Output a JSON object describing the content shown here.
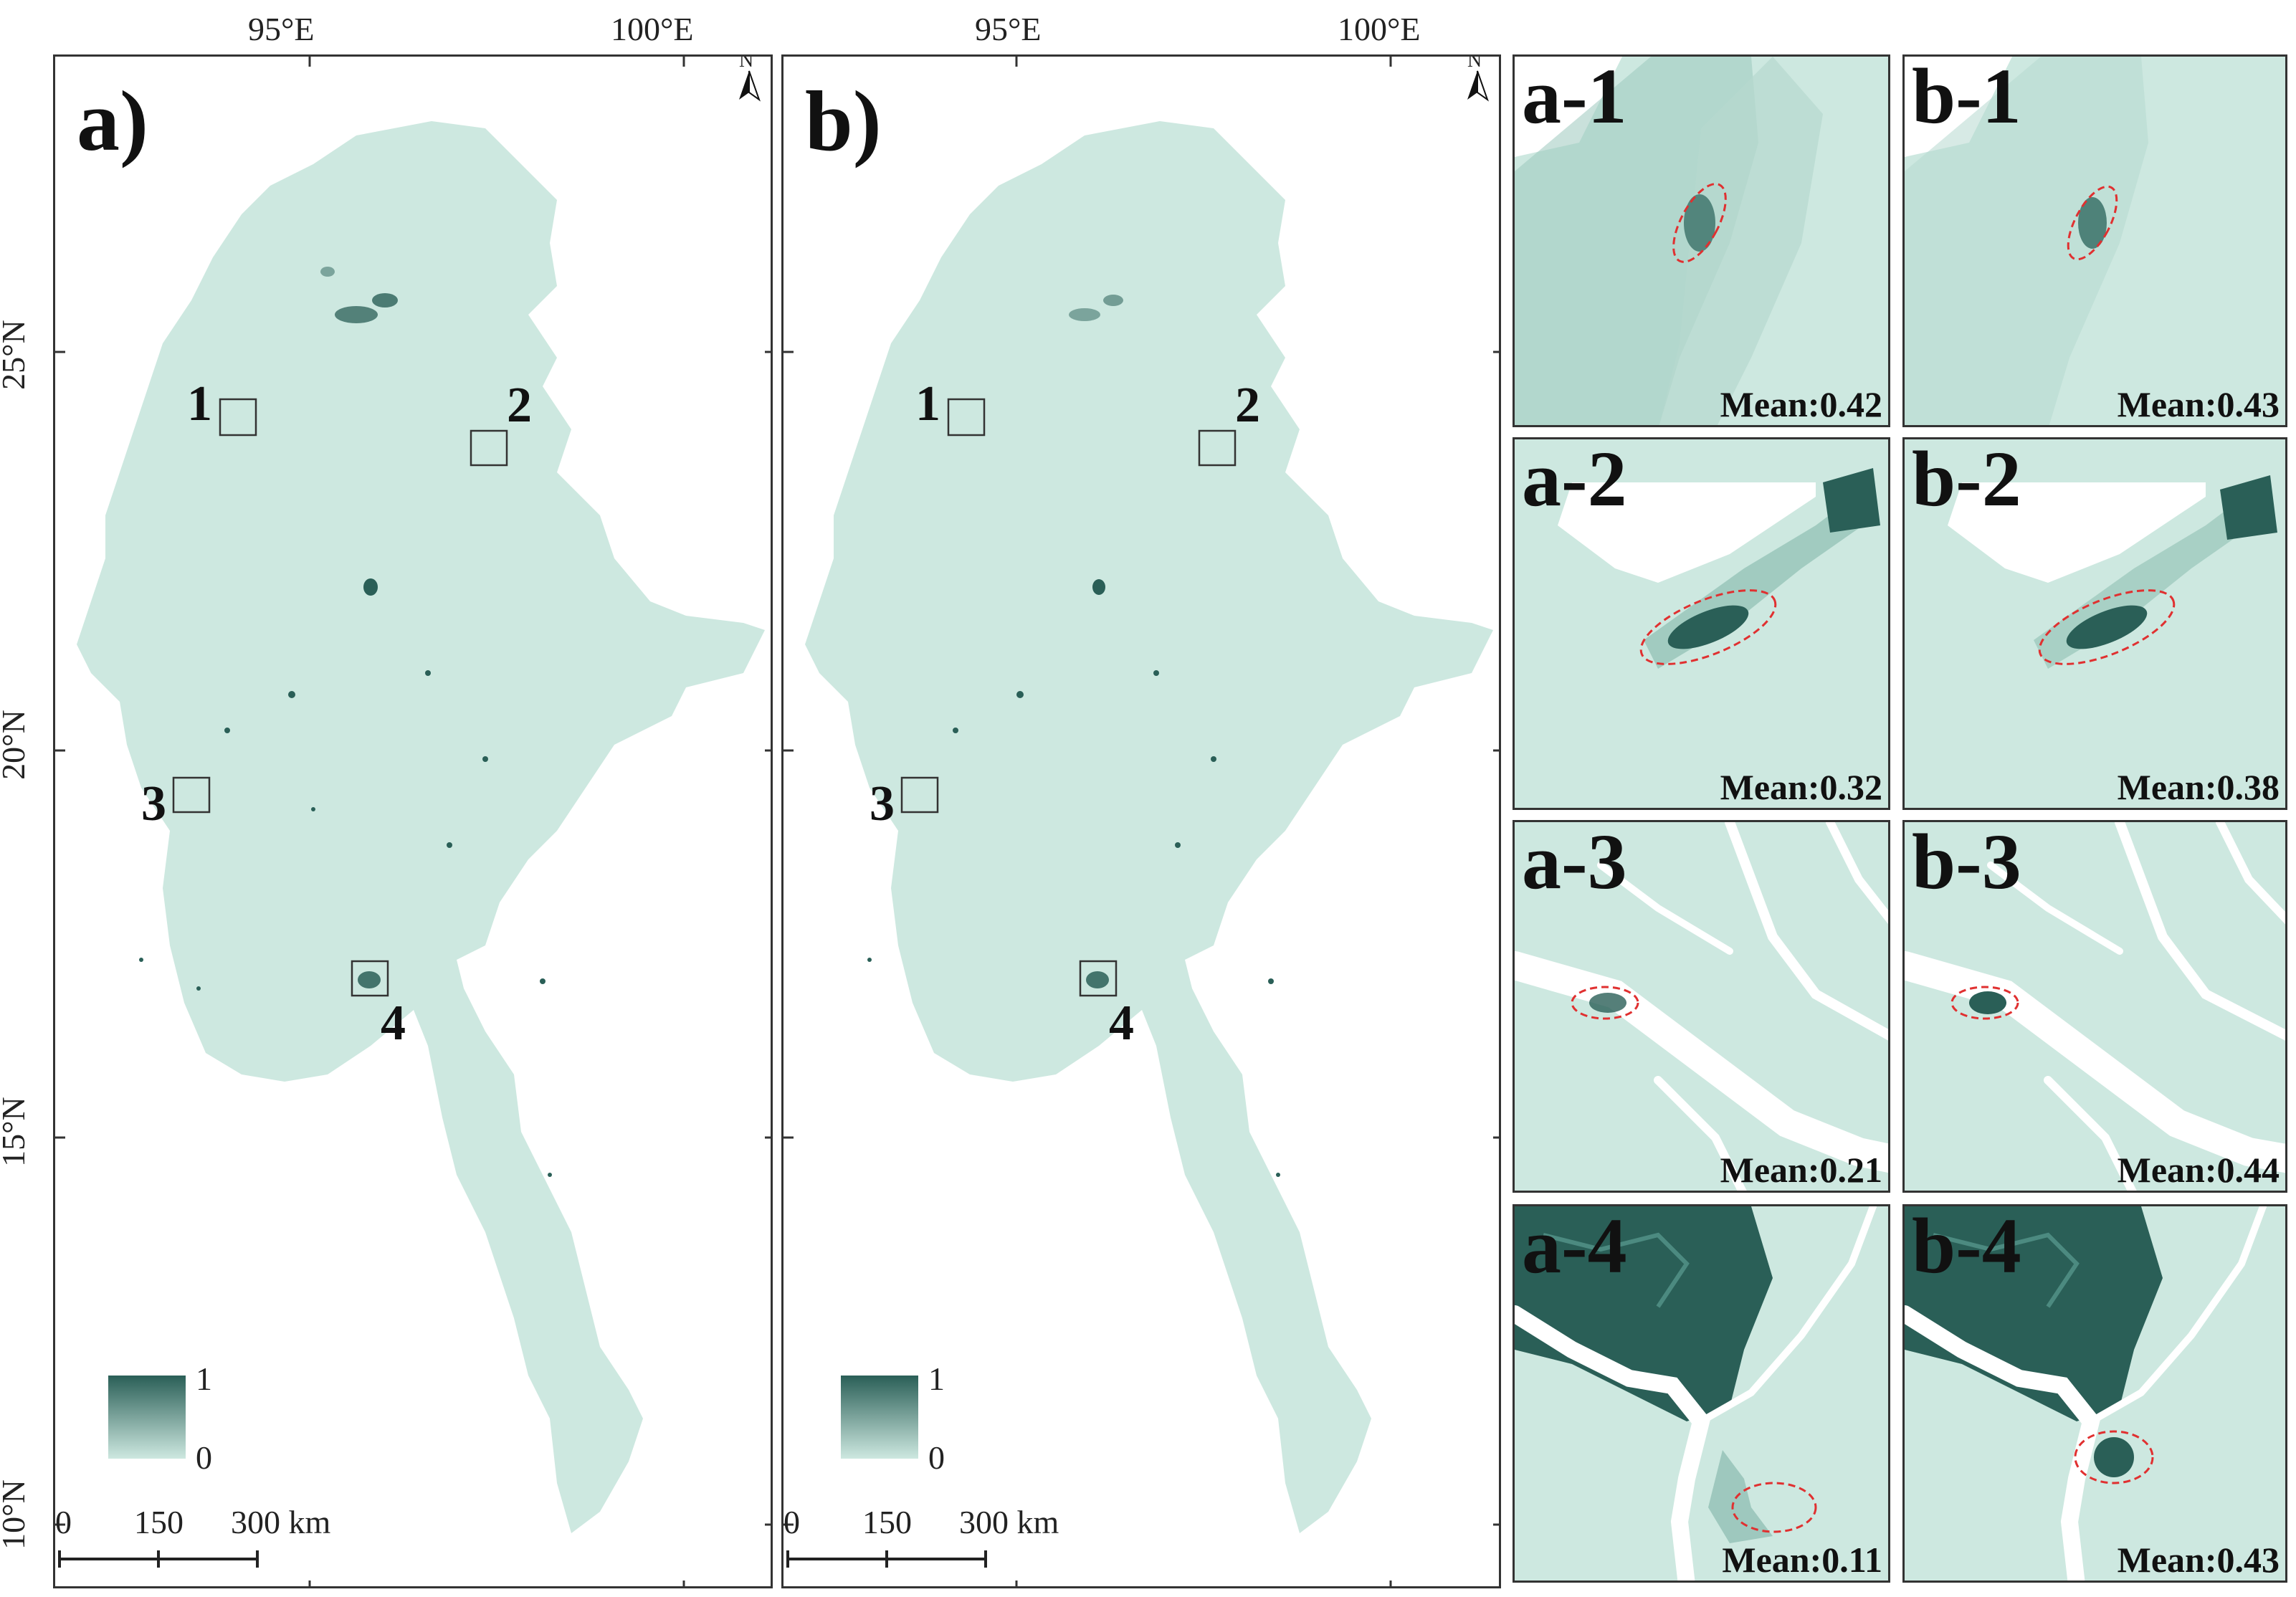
{
  "panels": [
    {
      "label": "a)",
      "north": "N",
      "boxes": [
        "1",
        "2",
        "3",
        "4"
      ],
      "legend": {
        "max": "1",
        "min": "0"
      },
      "scale": {
        "t0": "0",
        "t1": "150",
        "t2": "300 km"
      },
      "lon_ticks": [
        "95°E",
        "100°E"
      ],
      "lat_ticks": [
        "25°N",
        "20°N",
        "15°N",
        "10°N"
      ]
    },
    {
      "label": "b)",
      "north": "N",
      "boxes": [
        "1",
        "2",
        "3",
        "4"
      ],
      "legend": {
        "max": "1",
        "min": "0"
      },
      "scale": {
        "t0": "0",
        "t1": "150",
        "t2": "300 km"
      },
      "lon_ticks": [
        "95°E",
        "100°E"
      ]
    }
  ],
  "insets": [
    {
      "label": "a-1",
      "mean": "Mean:0.42"
    },
    {
      "label": "b-1",
      "mean": "Mean:0.43"
    },
    {
      "label": "a-2",
      "mean": "Mean:0.32"
    },
    {
      "label": "b-2",
      "mean": "Mean:0.38"
    },
    {
      "label": "a-3",
      "mean": "Mean:0.21"
    },
    {
      "label": "b-3",
      "mean": "Mean:0.44"
    },
    {
      "label": "a-4",
      "mean": "Mean:0.11"
    },
    {
      "label": "b-4",
      "mean": "Mean:0.43"
    }
  ],
  "colors": {
    "land": "#cde8e0",
    "dark": "#2a5f57",
    "highlight": "#e03030"
  }
}
